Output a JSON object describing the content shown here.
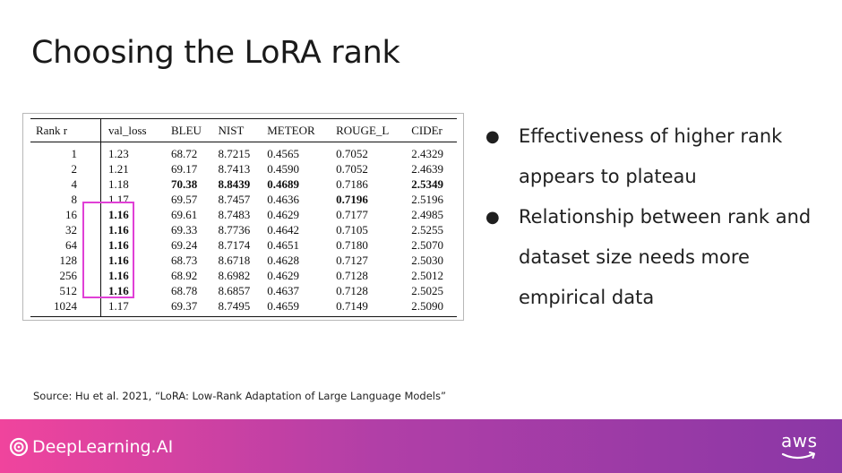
{
  "slide": {
    "title": "Choosing the LoRA rank"
  },
  "table": {
    "headers": [
      "Rank r",
      "val_loss",
      "BLEU",
      "NIST",
      "METEOR",
      "ROUGE_L",
      "CIDEr"
    ],
    "rows": [
      {
        "rank": "1",
        "val_loss": "1.23",
        "bleu": "68.72",
        "nist": "8.7215",
        "meteor": "0.4565",
        "rouge_l": "0.7052",
        "cider": "2.4329"
      },
      {
        "rank": "2",
        "val_loss": "1.21",
        "bleu": "69.17",
        "nist": "8.7413",
        "meteor": "0.4590",
        "rouge_l": "0.7052",
        "cider": "2.4639"
      },
      {
        "rank": "4",
        "val_loss": "1.18",
        "bleu": "70.38",
        "nist": "8.8439",
        "meteor": "0.4689",
        "rouge_l": "0.7186",
        "cider": "2.5349"
      },
      {
        "rank": "8",
        "val_loss": "1.17",
        "bleu": "69.57",
        "nist": "8.7457",
        "meteor": "0.4636",
        "rouge_l": "0.7196",
        "cider": "2.5196"
      },
      {
        "rank": "16",
        "val_loss": "1.16",
        "bleu": "69.61",
        "nist": "8.7483",
        "meteor": "0.4629",
        "rouge_l": "0.7177",
        "cider": "2.4985"
      },
      {
        "rank": "32",
        "val_loss": "1.16",
        "bleu": "69.33",
        "nist": "8.7736",
        "meteor": "0.4642",
        "rouge_l": "0.7105",
        "cider": "2.5255"
      },
      {
        "rank": "64",
        "val_loss": "1.16",
        "bleu": "69.24",
        "nist": "8.7174",
        "meteor": "0.4651",
        "rouge_l": "0.7180",
        "cider": "2.5070"
      },
      {
        "rank": "128",
        "val_loss": "1.16",
        "bleu": "68.73",
        "nist": "8.6718",
        "meteor": "0.4628",
        "rouge_l": "0.7127",
        "cider": "2.5030"
      },
      {
        "rank": "256",
        "val_loss": "1.16",
        "bleu": "68.92",
        "nist": "8.6982",
        "meteor": "0.4629",
        "rouge_l": "0.7128",
        "cider": "2.5012"
      },
      {
        "rank": "512",
        "val_loss": "1.16",
        "bleu": "68.78",
        "nist": "8.6857",
        "meteor": "0.4637",
        "rouge_l": "0.7128",
        "cider": "2.5025"
      },
      {
        "rank": "1024",
        "val_loss": "1.17",
        "bleu": "69.37",
        "nist": "8.7495",
        "meteor": "0.4659",
        "rouge_l": "0.7149",
        "cider": "2.5090"
      }
    ]
  },
  "bullets": [
    "Effectiveness of higher rank appears to plateau",
    "Relationship between rank and dataset size needs more empirical data"
  ],
  "source": "Source:  Hu et al. 2021, “LoRA: Low-Rank Adaptation of Large Language Models”",
  "footer": {
    "brand": "DeepLearning.AI",
    "partner": "aws",
    "gradient_start": "#f0449d",
    "gradient_end": "#8a37a6"
  },
  "highlight_color": "#e040d6"
}
